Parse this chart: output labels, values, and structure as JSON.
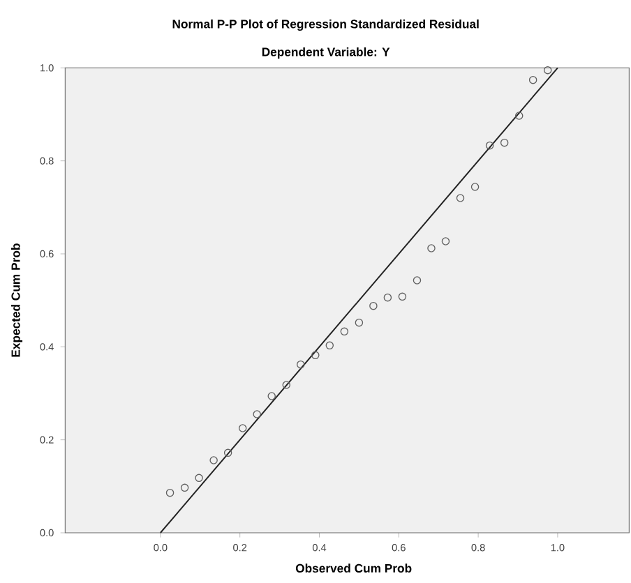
{
  "chart_data": {
    "type": "scatter",
    "title": "Normal P-P Plot of Regression Standardized Residual",
    "subtitle": "Dependent Variable: Y",
    "xlabel": "Observed Cum Prob",
    "ylabel": "Expected Cum Prob",
    "xlim": [
      -0.24,
      1.18
    ],
    "ylim": [
      0,
      1
    ],
    "xticks": [
      {
        "value": 0,
        "label": "0.0"
      },
      {
        "value": 0.2,
        "label": "0.2"
      },
      {
        "value": 0.4,
        "label": "0.4"
      },
      {
        "value": 0.6,
        "label": "0.6"
      },
      {
        "value": 0.8,
        "label": "0.8"
      },
      {
        "value": 1,
        "label": "1.0"
      }
    ],
    "yticks": [
      {
        "value": 0,
        "label": "0.0"
      },
      {
        "value": 0.2,
        "label": "0.2"
      },
      {
        "value": 0.4,
        "label": "0.4"
      },
      {
        "value": 0.6,
        "label": "0.6"
      },
      {
        "value": 0.8,
        "label": "0.8"
      },
      {
        "value": 1,
        "label": "1.0"
      }
    ],
    "grid": false,
    "series": [
      {
        "type": "scatter",
        "color": "#606060",
        "marker": "circle",
        "x": [
          0.024,
          0.061,
          0.097,
          0.134,
          0.17,
          0.207,
          0.243,
          0.28,
          0.317,
          0.353,
          0.39,
          0.426,
          0.463,
          0.5,
          0.536,
          0.572,
          0.609,
          0.646,
          0.682,
          0.718,
          0.755,
          0.792,
          0.829,
          0.866,
          0.903,
          0.938,
          0.975
        ],
        "values": [
          0.086,
          0.097,
          0.118,
          0.156,
          0.172,
          0.225,
          0.255,
          0.294,
          0.318,
          0.362,
          0.382,
          0.403,
          0.433,
          0.452,
          0.488,
          0.506,
          0.508,
          0.543,
          0.612,
          0.627,
          0.72,
          0.744,
          0.833,
          0.839,
          0.897,
          0.974,
          0.995
        ]
      },
      {
        "type": "line",
        "color": "#222222",
        "marker": "none",
        "line_style": "solid",
        "x": [
          0,
          1
        ],
        "values": [
          0,
          1
        ]
      }
    ]
  }
}
